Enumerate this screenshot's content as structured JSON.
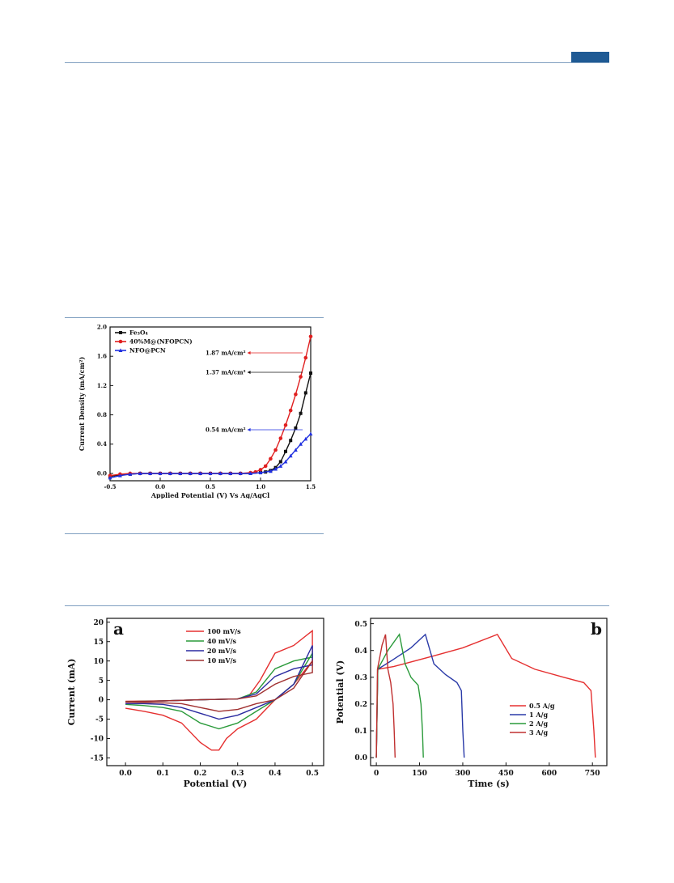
{
  "page": {
    "header_tab_color": "#1f5a94",
    "rule_color": "#7f9fc0"
  },
  "chart_data": [
    {
      "type": "line",
      "xlabel": "Applied Potential (V) Vs Ag/AgCl",
      "ylabel": "Current Density (mA/cm²)",
      "xlim": [
        -0.5,
        1.5
      ],
      "ylim": [
        -0.1,
        2.0
      ],
      "xticks": [
        "-0.5",
        "0.0",
        "0.5",
        "1.0",
        "1.5"
      ],
      "yticks": [
        "0.0",
        "0.4",
        "0.8",
        "1.2",
        "1.6",
        "2.0"
      ],
      "legend_position": "top-left",
      "series": [
        {
          "name": "Fe₃O₄",
          "color": "#111111",
          "marker": "square",
          "x": [
            -0.5,
            -0.4,
            -0.3,
            -0.2,
            -0.1,
            0,
            0.1,
            0.2,
            0.3,
            0.4,
            0.5,
            0.6,
            0.7,
            0.8,
            0.9,
            1.0,
            1.05,
            1.1,
            1.15,
            1.2,
            1.25,
            1.3,
            1.35,
            1.4,
            1.45,
            1.5
          ],
          "y": [
            -0.04,
            -0.02,
            -0.01,
            0,
            0,
            0,
            0,
            0,
            0,
            0,
            0,
            0,
            0,
            0,
            0,
            0.01,
            0.02,
            0.04,
            0.08,
            0.16,
            0.3,
            0.45,
            0.62,
            0.82,
            1.1,
            1.37
          ]
        },
        {
          "name": "40%M@(NFOPCN)",
          "color": "#e02020",
          "marker": "circle",
          "x": [
            -0.5,
            -0.4,
            -0.3,
            -0.2,
            -0.1,
            0,
            0.1,
            0.2,
            0.3,
            0.4,
            0.5,
            0.6,
            0.7,
            0.8,
            0.9,
            0.95,
            1.0,
            1.05,
            1.1,
            1.15,
            1.2,
            1.25,
            1.3,
            1.35,
            1.4,
            1.45,
            1.5
          ],
          "y": [
            -0.03,
            -0.01,
            0,
            0,
            0,
            0,
            0,
            0,
            0,
            0,
            0,
            0,
            0,
            0,
            0.01,
            0.02,
            0.05,
            0.1,
            0.2,
            0.32,
            0.48,
            0.66,
            0.86,
            1.08,
            1.32,
            1.58,
            1.87
          ]
        },
        {
          "name": "NFO@PCN",
          "color": "#2030e0",
          "marker": "triangle",
          "x": [
            -0.5,
            -0.4,
            -0.3,
            -0.2,
            -0.1,
            0,
            0.1,
            0.2,
            0.3,
            0.4,
            0.5,
            0.6,
            0.7,
            0.8,
            0.9,
            1.0,
            1.1,
            1.15,
            1.2,
            1.25,
            1.3,
            1.35,
            1.4,
            1.45,
            1.5
          ],
          "y": [
            -0.06,
            -0.03,
            -0.01,
            0,
            0,
            0,
            0,
            0,
            0,
            0,
            0,
            0,
            0,
            0,
            0,
            0.01,
            0.03,
            0.06,
            0.1,
            0.16,
            0.24,
            0.32,
            0.4,
            0.47,
            0.54
          ]
        }
      ],
      "annotations": [
        {
          "text": "1.87 mA/cm²",
          "x": 1.5,
          "y": 1.87,
          "color": "#e02020"
        },
        {
          "text": "1.37 mA/cm²",
          "x": 1.5,
          "y": 1.37,
          "color": "#111111"
        },
        {
          "text": "0.54 mA/cm²",
          "x": 1.5,
          "y": 0.54,
          "color": "#2030e0"
        }
      ]
    },
    {
      "type": "line",
      "panel_label": "a",
      "xlabel": "Potential (V)",
      "ylabel": "Current (mA)",
      "xlim": [
        -0.05,
        0.53
      ],
      "ylim": [
        -17,
        21
      ],
      "xticks": [
        "0.0",
        "0.1",
        "0.2",
        "0.3",
        "0.4",
        "0.5"
      ],
      "yticks": [
        "-15",
        "-10",
        "-5",
        "0",
        "5",
        "10",
        "15",
        "20"
      ],
      "legend_position": "top-center",
      "series": [
        {
          "name": "100 mV/s",
          "color": "#e53030",
          "x": [
            0,
            0.1,
            0.2,
            0.3,
            0.33,
            0.36,
            0.4,
            0.45,
            0.5,
            0.5,
            0.45,
            0.4,
            0.35,
            0.3,
            0.27,
            0.25,
            0.23,
            0.2,
            0.15,
            0.1,
            0.05,
            0
          ],
          "y": [
            -0.4,
            -0.3,
            0,
            0.2,
            1,
            5,
            12,
            14,
            17.8,
            10,
            4,
            0,
            -5,
            -7.5,
            -10,
            -13,
            -13,
            -11,
            -6,
            -4,
            -3,
            -2.2
          ]
        },
        {
          "name": "40 mV/s",
          "color": "#2a9a3a",
          "x": [
            0,
            0.1,
            0.2,
            0.3,
            0.35,
            0.4,
            0.45,
            0.5,
            0.5,
            0.45,
            0.4,
            0.35,
            0.3,
            0.25,
            0.2,
            0.15,
            0.1,
            0.05,
            0
          ],
          "y": [
            -0.5,
            -0.3,
            0,
            0.2,
            2,
            8,
            10,
            11,
            12,
            4,
            0,
            -3,
            -6,
            -7.5,
            -6,
            -3,
            -2,
            -1.5,
            -1.2
          ]
        },
        {
          "name": "20 mV/s",
          "color": "#2a2aa0",
          "x": [
            0,
            0.1,
            0.2,
            0.3,
            0.35,
            0.4,
            0.45,
            0.5,
            0.5,
            0.45,
            0.4,
            0.35,
            0.3,
            0.25,
            0.2,
            0.15,
            0.1,
            0.05,
            0
          ],
          "y": [
            -0.6,
            -0.3,
            0,
            0.2,
            1.5,
            6,
            8,
            9,
            14,
            4,
            0,
            -2,
            -4,
            -5,
            -3.5,
            -2,
            -1.2,
            -1,
            -1
          ]
        },
        {
          "name": "10 mV/s",
          "color": "#a03030",
          "x": [
            0,
            0.1,
            0.2,
            0.3,
            0.35,
            0.4,
            0.45,
            0.5,
            0.5,
            0.45,
            0.4,
            0.35,
            0.3,
            0.25,
            0.2,
            0.15,
            0.1,
            0.05,
            0
          ],
          "y": [
            -0.5,
            -0.3,
            0,
            0.2,
            1,
            4,
            6,
            7,
            10,
            3,
            0,
            -1,
            -2.5,
            -3,
            -2,
            -1,
            -0.8,
            -0.7,
            -0.6
          ]
        }
      ]
    },
    {
      "type": "line",
      "panel_label": "b",
      "xlabel": "Time (s)",
      "ylabel": "Potential (V)",
      "xlim": [
        -20,
        800
      ],
      "ylim": [
        -0.03,
        0.52
      ],
      "xticks": [
        "0",
        "150",
        "300",
        "450",
        "600",
        "750"
      ],
      "yticks": [
        "0.0",
        "0.1",
        "0.2",
        "0.3",
        "0.4",
        "0.5"
      ],
      "legend_position": "lower-right",
      "series": [
        {
          "name": "0.5 A/g",
          "color": "#e53030",
          "x": [
            0,
            5,
            60,
            200,
            300,
            420,
            470,
            550,
            650,
            720,
            745,
            755,
            760
          ],
          "y": [
            0,
            0.33,
            0.34,
            0.38,
            0.41,
            0.46,
            0.37,
            0.33,
            0.3,
            0.28,
            0.25,
            0.1,
            0
          ]
        },
        {
          "name": "1 A/g",
          "color": "#2a3aa8",
          "x": [
            0,
            5,
            50,
            120,
            170,
            200,
            240,
            280,
            295,
            300,
            305
          ],
          "y": [
            0,
            0.33,
            0.36,
            0.41,
            0.46,
            0.35,
            0.31,
            0.28,
            0.25,
            0.1,
            0
          ]
        },
        {
          "name": "2 A/g",
          "color": "#2a9a3a",
          "x": [
            0,
            5,
            40,
            80,
            100,
            120,
            145,
            155,
            160,
            163
          ],
          "y": [
            0,
            0.33,
            0.4,
            0.46,
            0.35,
            0.3,
            0.27,
            0.2,
            0.1,
            0
          ]
        },
        {
          "name": "3 A/g",
          "color": "#c03030",
          "x": [
            0,
            4,
            20,
            32,
            40,
            50,
            58,
            62,
            65
          ],
          "y": [
            0,
            0.33,
            0.42,
            0.46,
            0.33,
            0.28,
            0.2,
            0.1,
            0
          ]
        }
      ]
    }
  ]
}
